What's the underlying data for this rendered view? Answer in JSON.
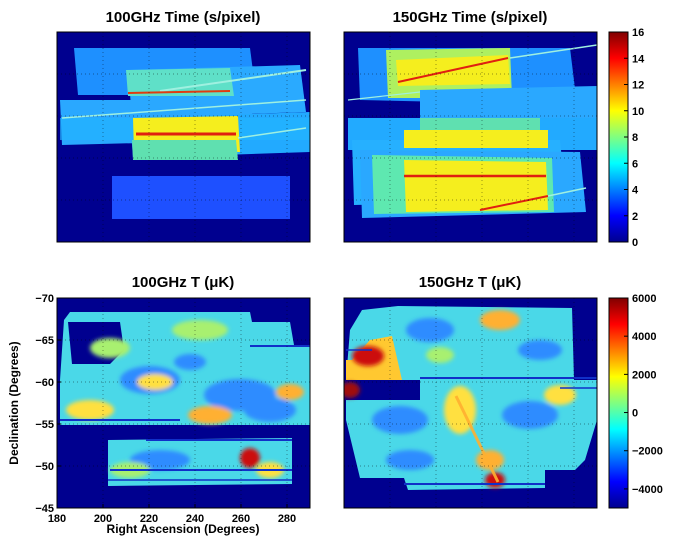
{
  "chart_data": [
    {
      "type": "heatmap",
      "title": "100GHz Time (s/pixel)",
      "xlim": [
        180,
        290
      ],
      "ylim": [
        -45,
        -70
      ],
      "grid": true
    },
    {
      "type": "heatmap",
      "title": "150GHz Time (s/pixel)",
      "xlim": [
        180,
        290
      ],
      "ylim": [
        -45,
        -70
      ],
      "grid": true,
      "colorbar": {
        "min": 0,
        "max": 16,
        "ticks": [
          "0",
          "2",
          "4",
          "6",
          "8",
          "10",
          "12",
          "14",
          "16"
        ]
      }
    },
    {
      "type": "heatmap",
      "title_prefix": "100GHz T (",
      "title_unit": "μK",
      "title_suffix": ")",
      "xlabel": "Right Ascension (Degrees)",
      "ylabel": "Declination (Degrees)",
      "xlim": [
        180,
        290
      ],
      "ylim": [
        -45,
        -70
      ],
      "xticks": [
        "180",
        "200",
        "220",
        "240",
        "260",
        "280"
      ],
      "yticks": [
        "−70",
        "−65",
        "−60",
        "−55",
        "−50",
        "−45"
      ],
      "grid": true
    },
    {
      "type": "heatmap",
      "title_prefix": "150GHz T (",
      "title_unit": "μK",
      "title_suffix": ")",
      "xlim": [
        180,
        290
      ],
      "ylim": [
        -45,
        -70
      ],
      "grid": true,
      "colorbar": {
        "min": -5000,
        "max": 6000,
        "ticks": [
          "6000",
          "4000",
          "2000",
          "0",
          "−2000",
          "−4000"
        ]
      }
    }
  ],
  "colors": {
    "background": "#00008f",
    "colormap": "jet"
  }
}
